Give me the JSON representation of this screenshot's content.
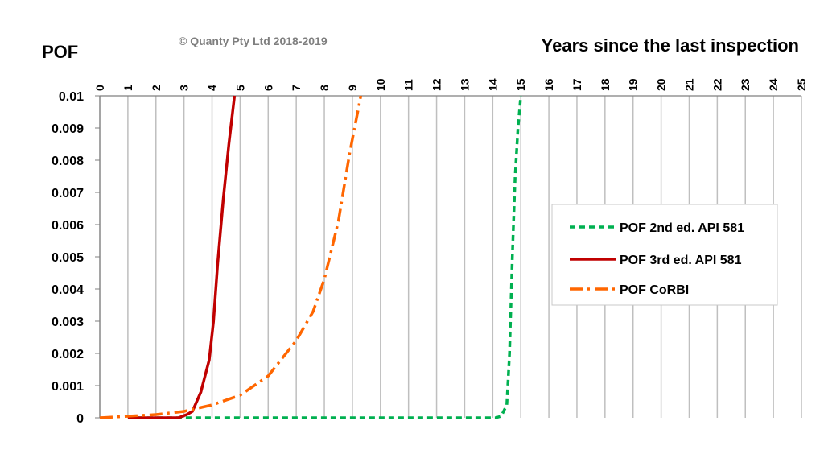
{
  "chart_data": {
    "type": "line",
    "title": "Years since the last inspection",
    "ylabel": "POF",
    "copyright": "© Quanty Pty Ltd 2018-2019",
    "x_ticks": [
      "0",
      "1",
      "2",
      "3",
      "4",
      "5",
      "6",
      "7",
      "8",
      "9",
      "10",
      "11",
      "12",
      "13",
      "14",
      "15",
      "16",
      "17",
      "18",
      "19",
      "20",
      "21",
      "22",
      "23",
      "24",
      "25"
    ],
    "y_ticks": [
      "0",
      "0.001",
      "0.002",
      "0.003",
      "0.004",
      "0.005",
      "0.006",
      "0.007",
      "0.008",
      "0.009",
      "0.01"
    ],
    "xlim": [
      0,
      25
    ],
    "ylim": [
      0,
      0.01
    ],
    "grid": "vertical",
    "legend_position": "right",
    "series": [
      {
        "name": "POF 2nd ed. API 581",
        "color": "#00b050",
        "dash": "dashed",
        "points": [
          [
            1,
            0
          ],
          [
            3,
            0
          ],
          [
            6,
            0
          ],
          [
            10,
            0
          ],
          [
            13,
            0
          ],
          [
            14.1,
            0
          ],
          [
            14.3,
            5e-05
          ],
          [
            14.5,
            0.0004
          ],
          [
            14.6,
            0.002
          ],
          [
            14.7,
            0.005
          ],
          [
            14.8,
            0.0075
          ],
          [
            14.9,
            0.009
          ],
          [
            15.0,
            0.01
          ]
        ]
      },
      {
        "name": "POF 3rd ed. API 581",
        "color": "#c00000",
        "dash": "solid",
        "points": [
          [
            1,
            0
          ],
          [
            2,
            0
          ],
          [
            2.8,
            0
          ],
          [
            3.1,
            0.0001
          ],
          [
            3.3,
            0.0002
          ],
          [
            3.6,
            0.0008
          ],
          [
            3.9,
            0.0018
          ],
          [
            4.05,
            0.003
          ],
          [
            4.2,
            0.0048
          ],
          [
            4.4,
            0.0068
          ],
          [
            4.6,
            0.0085
          ],
          [
            4.8,
            0.01
          ]
        ]
      },
      {
        "name": "POF CoRBI",
        "color": "#ff6600",
        "dash": "dashdot",
        "points": [
          [
            0,
            0
          ],
          [
            1,
            5e-05
          ],
          [
            2,
            0.0001
          ],
          [
            3,
            0.0002
          ],
          [
            4,
            0.0004
          ],
          [
            5,
            0.0007
          ],
          [
            6,
            0.0013
          ],
          [
            7,
            0.0024
          ],
          [
            7.6,
            0.0033
          ],
          [
            8.0,
            0.0043
          ],
          [
            8.5,
            0.0061
          ],
          [
            8.9,
            0.0082
          ],
          [
            9.3,
            0.01
          ]
        ]
      }
    ]
  }
}
